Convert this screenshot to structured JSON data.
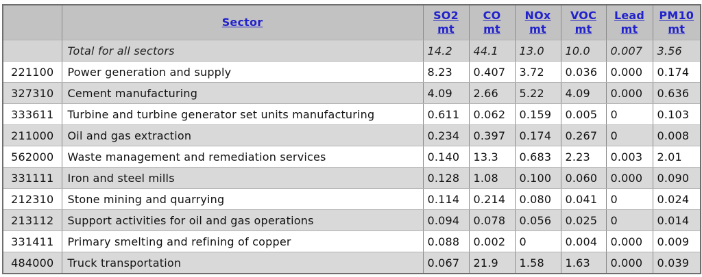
{
  "table": {
    "headers": {
      "code_label": "",
      "sector_label": "Sector",
      "pollutants": [
        {
          "name": "SO2",
          "unit": "mt"
        },
        {
          "name": "CO",
          "unit": "mt"
        },
        {
          "name": "NOx",
          "unit": "mt"
        },
        {
          "name": "VOC",
          "unit": "mt"
        },
        {
          "name": "Lead",
          "unit": "mt"
        },
        {
          "name": "PM10",
          "unit": "mt"
        }
      ]
    },
    "total_row": {
      "label": "Total for all sectors",
      "values": [
        "14.2",
        "44.1",
        "13.0",
        "10.0",
        "0.007",
        "3.56"
      ]
    },
    "rows": [
      {
        "code": "221100",
        "sector": "Power generation and supply",
        "values": [
          "8.23",
          "0.407",
          "3.72",
          "0.036",
          "0.000",
          "0.174"
        ]
      },
      {
        "code": "327310",
        "sector": "Cement manufacturing",
        "values": [
          "4.09",
          "2.66",
          "5.22",
          "4.09",
          "0.000",
          "0.636"
        ]
      },
      {
        "code": "333611",
        "sector": "Turbine and turbine generator set units manufacturing",
        "values": [
          "0.611",
          "0.062",
          "0.159",
          "0.005",
          "0",
          "0.103"
        ]
      },
      {
        "code": "211000",
        "sector": "Oil and gas extraction",
        "values": [
          "0.234",
          "0.397",
          "0.174",
          "0.267",
          "0",
          "0.008"
        ]
      },
      {
        "code": "562000",
        "sector": "Waste management and remediation services",
        "values": [
          "0.140",
          "13.3",
          "0.683",
          "2.23",
          "0.003",
          "2.01"
        ]
      },
      {
        "code": "331111",
        "sector": "Iron and steel mills",
        "values": [
          "0.128",
          "1.08",
          "0.100",
          "0.060",
          "0.000",
          "0.090"
        ]
      },
      {
        "code": "212310",
        "sector": "Stone mining and quarrying",
        "values": [
          "0.114",
          "0.214",
          "0.080",
          "0.041",
          "0",
          "0.024"
        ]
      },
      {
        "code": "213112",
        "sector": "Support activities for oil and gas operations",
        "values": [
          "0.094",
          "0.078",
          "0.056",
          "0.025",
          "0",
          "0.014"
        ]
      },
      {
        "code": "331411",
        "sector": "Primary smelting and refining of copper",
        "values": [
          "0.088",
          "0.002",
          "0",
          "0.004",
          "0.000",
          "0.009"
        ]
      },
      {
        "code": "484000",
        "sector": "Truck transportation",
        "values": [
          "0.067",
          "21.9",
          "1.58",
          "1.63",
          "0.000",
          "0.039"
        ]
      }
    ]
  },
  "colors": {
    "header_bg": "#c2c2c2",
    "total_row_bg": "#d4d4d4",
    "stripe_row_bg": "#d9d9d9",
    "white_row_bg": "#ffffff",
    "link": "#2222cc",
    "border": "#8a8a8a",
    "outer_border": "#6e6e6e"
  }
}
